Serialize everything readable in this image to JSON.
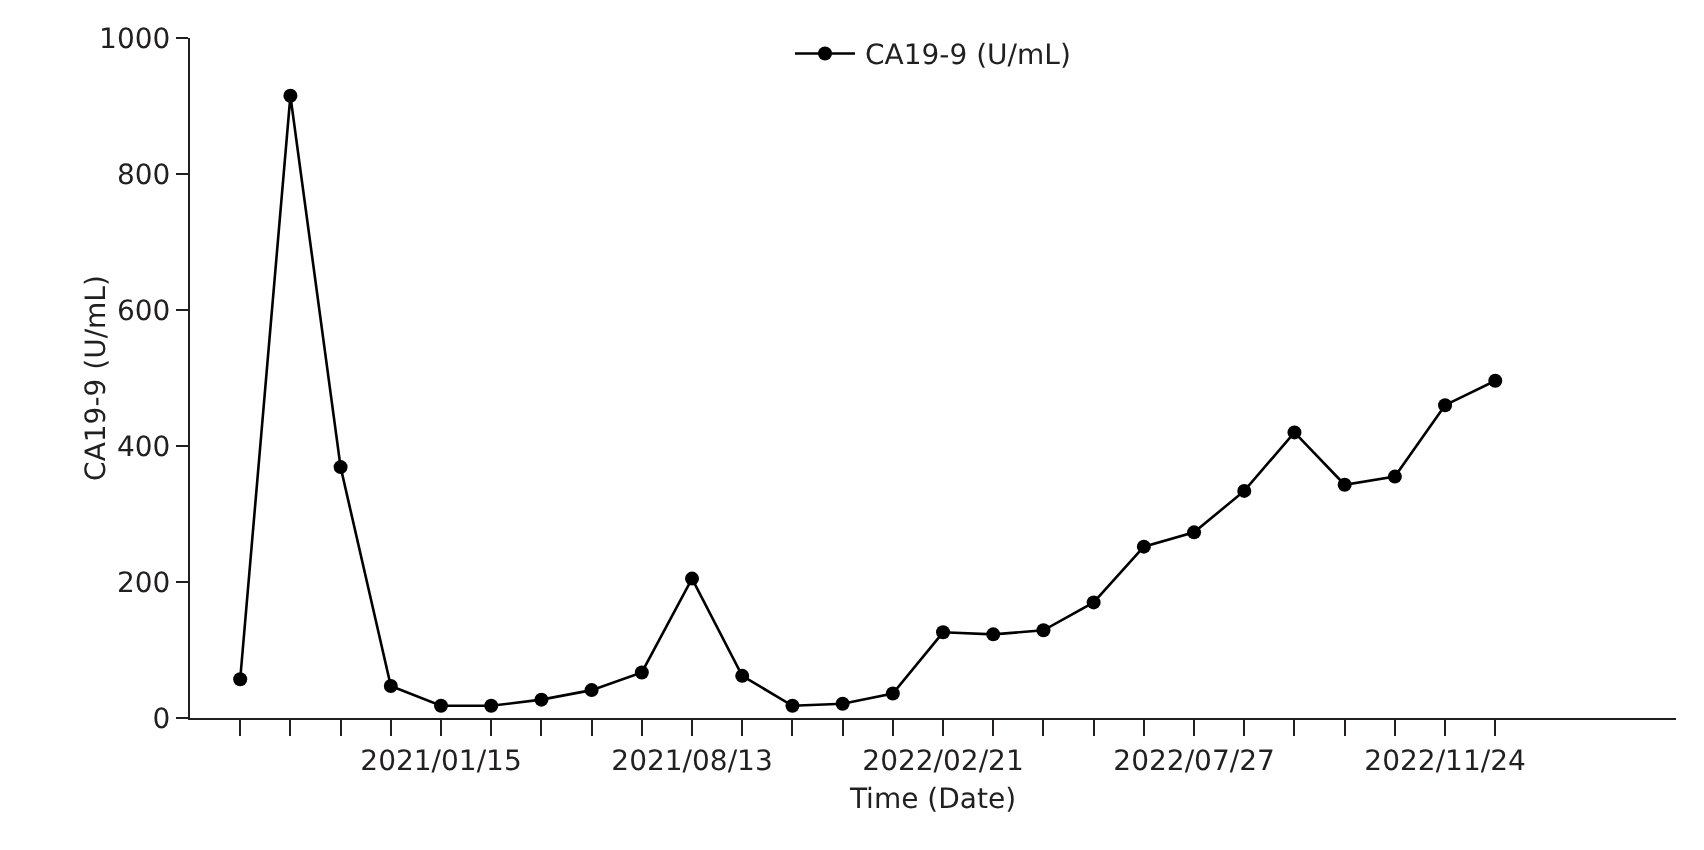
{
  "chart_data": {
    "type": "line",
    "xlabel": "Time (Date)",
    "ylabel": "CA19-9 (U/mL)",
    "categories": [
      null,
      null,
      null,
      null,
      "2021/01/15",
      null,
      null,
      null,
      null,
      "2021/08/13",
      null,
      null,
      null,
      null,
      "2022/02/21",
      null,
      null,
      null,
      null,
      "2022/07/27",
      null,
      null,
      null,
      null,
      "2022/11/24",
      null
    ],
    "series": [
      {
        "name": "CA19-9 (U/mL)",
        "color": "#000000",
        "values": [
          57,
          915,
          369,
          47,
          18,
          18,
          27,
          41,
          67,
          205,
          62,
          18,
          21,
          36,
          126,
          123,
          129,
          170,
          252,
          273,
          334,
          420,
          343,
          355,
          460,
          496
        ]
      }
    ],
    "ylim": [
      0,
      1000
    ],
    "yticks": [
      0,
      200,
      400,
      600,
      800,
      1000
    ],
    "grid": false,
    "legend": "top",
    "marker": "circle",
    "line_style": "solid"
  }
}
